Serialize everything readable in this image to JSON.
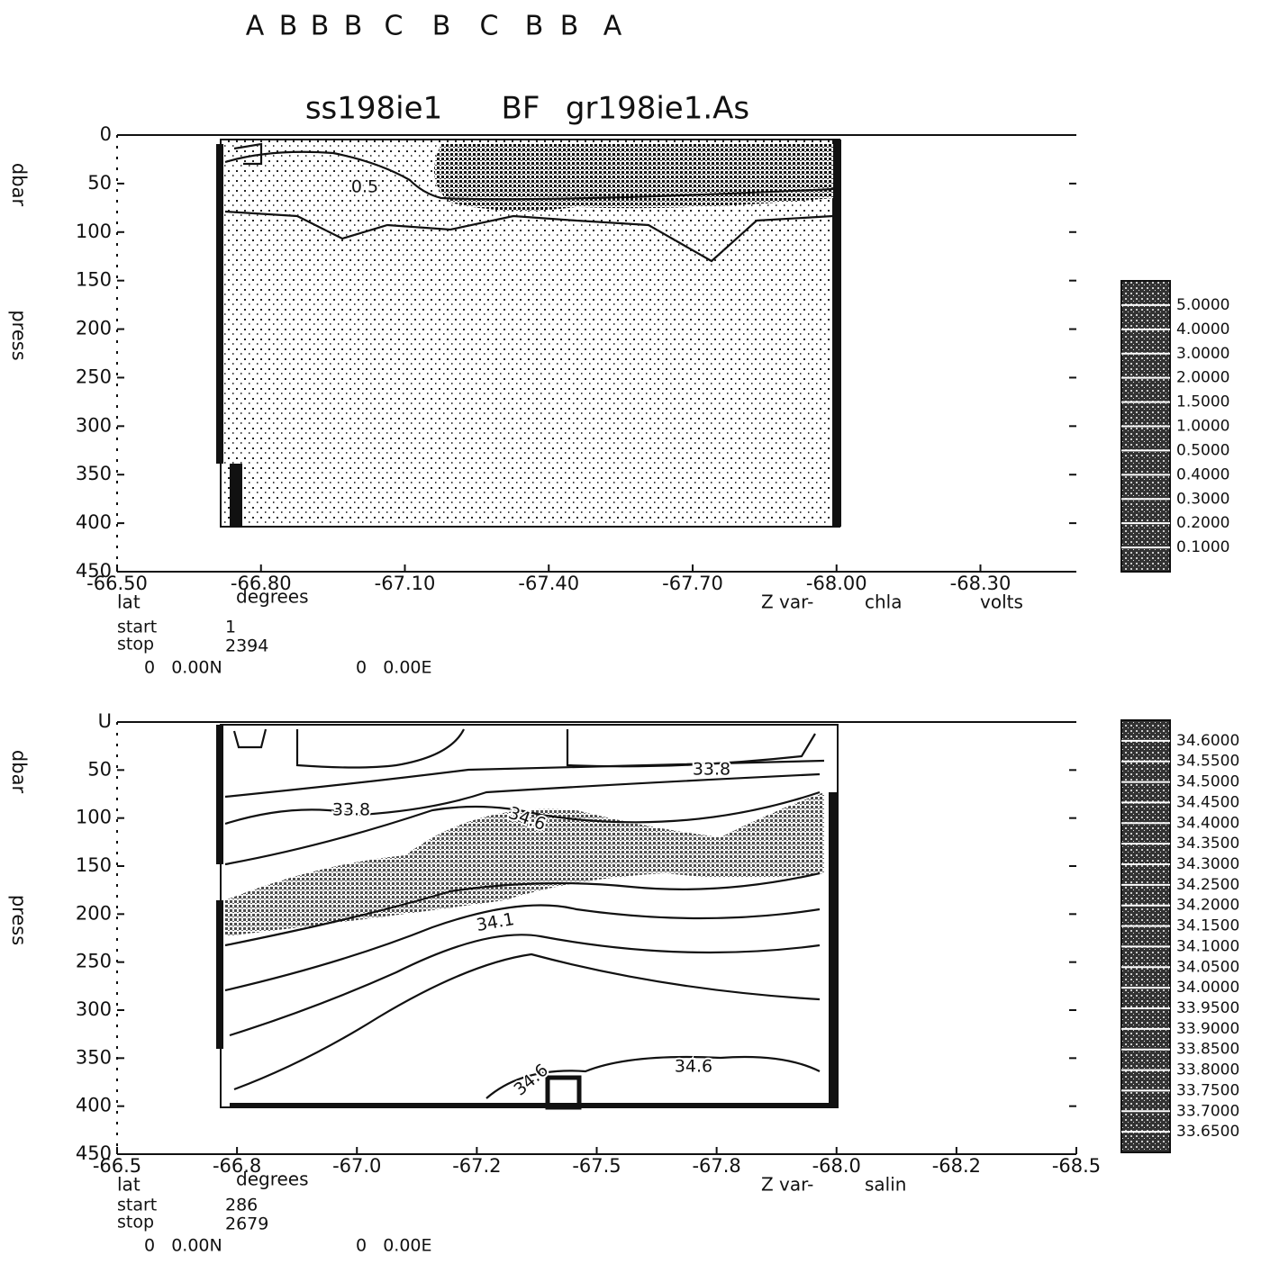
{
  "header": {
    "stations": [
      "A",
      "B",
      "B",
      "B",
      "C",
      "B",
      "C",
      "B",
      "B",
      "A"
    ],
    "title": [
      "ss198ie1",
      "BF",
      "gr198ie1.As"
    ]
  },
  "chart_data": [
    {
      "type": "contour",
      "ylabel": "press",
      "yunit": "dbar",
      "xlabel": "lat",
      "xunit": "degrees",
      "zvar_label": "Z var-",
      "variable": "chla",
      "unit": "volts",
      "xlim": [
        -66.5,
        -68.5
      ],
      "ylim": [
        0,
        450
      ],
      "y_inverted": true,
      "xticks": [
        {
          "value": -66.5,
          "label": "-66.50"
        },
        {
          "value": -66.8,
          "label": "-66.80"
        },
        {
          "value": -67.1,
          "label": "-67.10"
        },
        {
          "value": -67.4,
          "label": "-67.40"
        },
        {
          "value": -67.7,
          "label": "-67.70"
        },
        {
          "value": -68.0,
          "label": "-68.00"
        },
        {
          "value": -68.3,
          "label": "-68.30"
        }
      ],
      "yticks": [
        0,
        50,
        100,
        150,
        200,
        250,
        300,
        350,
        400,
        450
      ],
      "colorbar": [
        {
          "value": 5,
          "label": "5.0000"
        },
        {
          "value": 4,
          "label": "4.0000"
        },
        {
          "value": 3,
          "label": "3.0000"
        },
        {
          "value": 2,
          "label": "2.0000"
        },
        {
          "value": 1.5,
          "label": "1.5000"
        },
        {
          "value": 1,
          "label": "1.0000"
        },
        {
          "value": 0.5,
          "label": "0.5000"
        },
        {
          "value": 0.4,
          "label": "0.4000"
        },
        {
          "value": 0.3,
          "label": "0.3000"
        },
        {
          "value": 0.2,
          "label": "0.2000"
        },
        {
          "value": 0.1,
          "label": "0.1000"
        }
      ],
      "contour_labels": [
        "0.5"
      ],
      "info": {
        "start_label": "start",
        "start": 1,
        "stop_label": "stop",
        "stop": 2394,
        "lat_origin": "0   0.00N",
        "lon_origin": "0   0.00E"
      }
    },
    {
      "type": "contour",
      "ylabel": "press",
      "yunit": "dbar",
      "xlabel": "lat",
      "xunit": "degrees",
      "zvar_label": "Z var-",
      "variable": "salin",
      "unit": "",
      "xlim": [
        -66.5,
        -68.5
      ],
      "ylim": [
        0,
        450
      ],
      "y_inverted": true,
      "xticks": [
        -66.5,
        {
          "value": -66.75,
          "label": "-66.8"
        },
        {
          "value": -67.0,
          "label": "-67.0"
        },
        {
          "value": -67.25,
          "label": "-67.2"
        },
        -67.5,
        {
          "value": -67.75,
          "label": "-67.8"
        },
        {
          "value": -68.0,
          "label": "-68.0"
        },
        {
          "value": -68.25,
          "label": "-68.2"
        },
        -68.5
      ],
      "yticks": [
        {
          "value": 0,
          "label": "U"
        },
        50,
        100,
        150,
        200,
        250,
        300,
        350,
        400,
        450
      ],
      "colorbar": [
        {
          "value": 34.6,
          "label": "34.6000"
        },
        {
          "value": 34.55,
          "label": "34.5500"
        },
        {
          "value": 34.5,
          "label": "34.5000"
        },
        {
          "value": 34.45,
          "label": "34.4500"
        },
        {
          "value": 34.4,
          "label": "34.4000"
        },
        {
          "value": 34.35,
          "label": "34.3500"
        },
        {
          "value": 34.3,
          "label": "34.3000"
        },
        {
          "value": 34.25,
          "label": "34.2500"
        },
        {
          "value": 34.2,
          "label": "34.2000"
        },
        {
          "value": 34.15,
          "label": "34.1500"
        },
        {
          "value": 34.1,
          "label": "34.1000"
        },
        {
          "value": 34.05,
          "label": "34.0500"
        },
        {
          "value": 34.0,
          "label": "34.0000"
        },
        {
          "value": 33.95,
          "label": "33.9500"
        },
        {
          "value": 33.9,
          "label": "33.9000"
        },
        {
          "value": 33.85,
          "label": "33.8500"
        },
        {
          "value": 33.8,
          "label": "33.8000"
        },
        {
          "value": 33.75,
          "label": "33.7500"
        },
        {
          "value": 33.7,
          "label": "33.7000"
        },
        {
          "value": 33.65,
          "label": "33.6500"
        }
      ],
      "contour_labels": [
        "33.8",
        "33.8",
        "34.6",
        "34.1",
        "34.6",
        "34.6"
      ],
      "info": {
        "start_label": "start",
        "start": 286,
        "stop_label": "stop",
        "stop": 2679,
        "lat_origin": "0   0.00N",
        "lon_origin": "0   0.00E"
      }
    }
  ]
}
